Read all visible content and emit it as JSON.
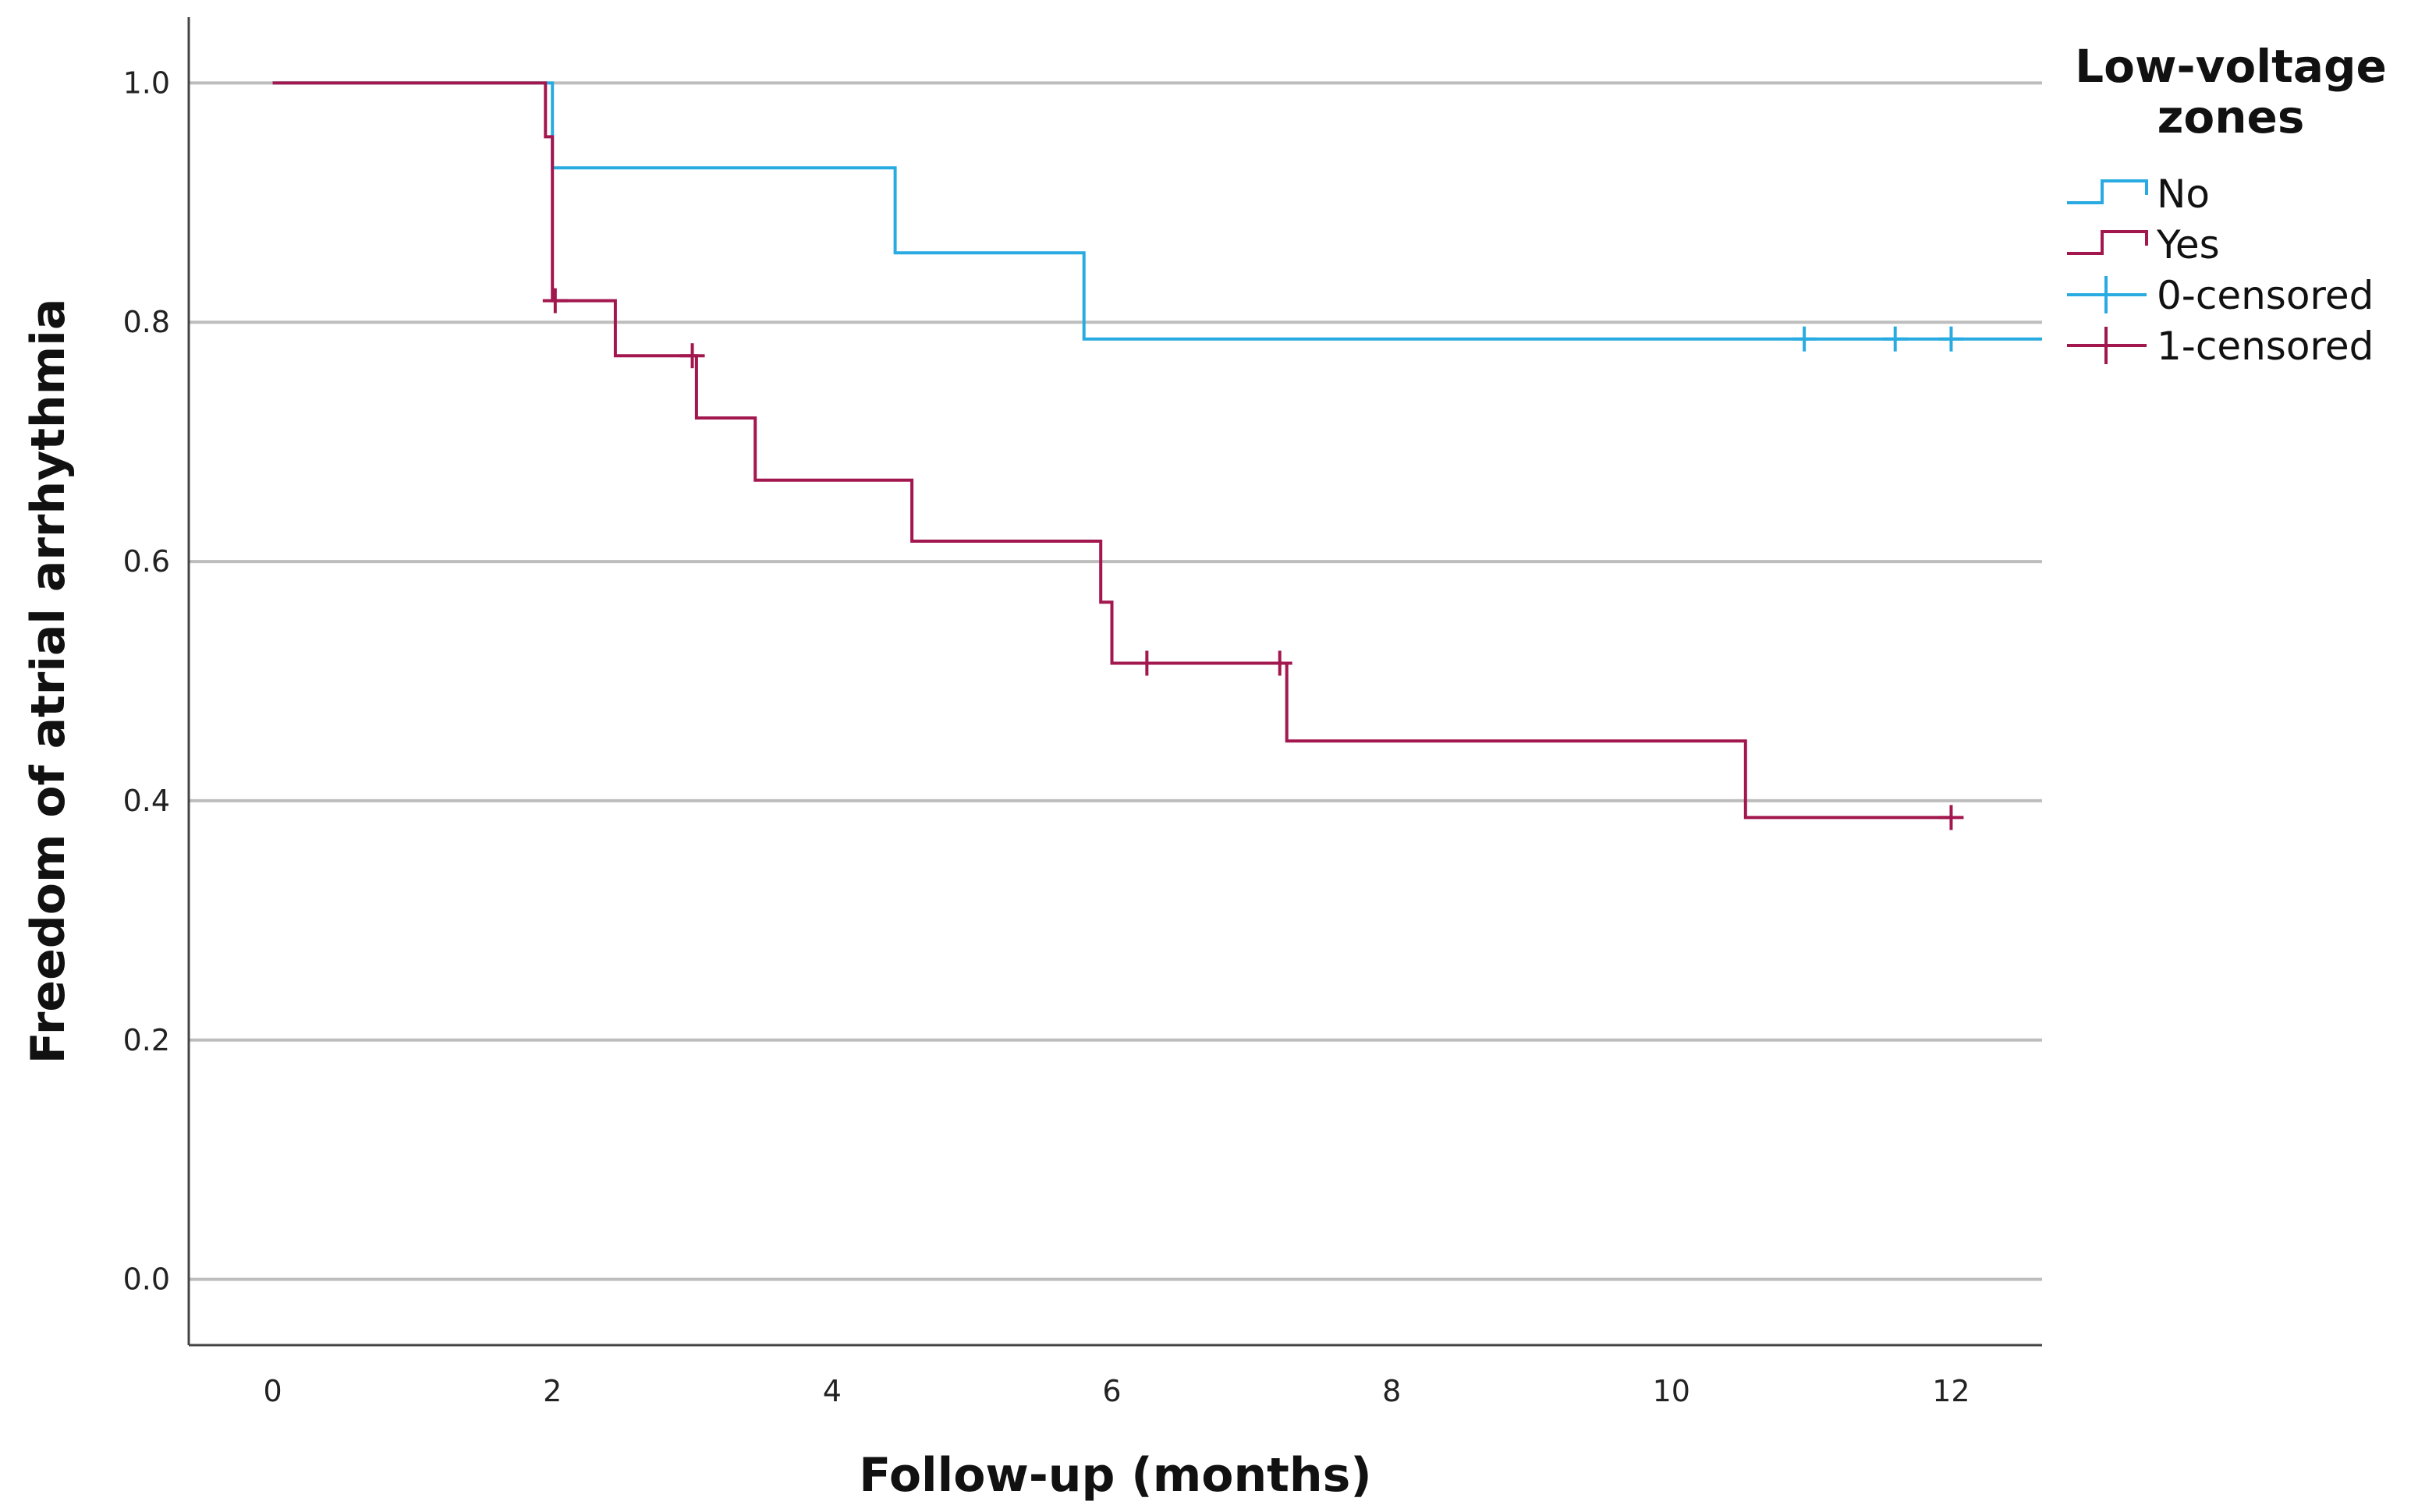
{
  "chart_data": {
    "type": "line",
    "xlabel": "Follow-up (months)",
    "ylabel": "Freedom of atrial arrhythmia",
    "xlim": [
      -0.6,
      12.65
    ],
    "ylim": [
      -0.055,
      1.055
    ],
    "x_ticks": [
      "0",
      "2",
      "4",
      "6",
      "8",
      "10",
      "12"
    ],
    "y_ticks": [
      "0.0",
      "0.2",
      "0.4",
      "0.6",
      "0.8",
      "1.0"
    ],
    "grid": "horizontal",
    "legend": {
      "title_line1": "Low-voltage",
      "title_line2": "zones",
      "placement": "right",
      "entries": [
        "No",
        "Yes",
        "0-censored",
        "1-censored"
      ]
    },
    "series": [
      {
        "name": "No",
        "color": "#29abe2",
        "steps": [
          [
            0,
            1.0
          ],
          [
            2.0,
            0.929
          ],
          [
            4.45,
            0.858
          ],
          [
            5.8,
            0.786
          ],
          [
            12.65,
            0.786
          ]
        ],
        "censored": [
          [
            10.95,
            0.786
          ],
          [
            11.6,
            0.786
          ],
          [
            12.0,
            0.786
          ]
        ]
      },
      {
        "name": "Yes",
        "color": "#a3174f",
        "steps": [
          [
            0,
            1.0
          ],
          [
            1.95,
            0.955
          ],
          [
            2.0,
            0.818
          ],
          [
            2.45,
            0.772
          ],
          [
            3.03,
            0.72
          ],
          [
            3.45,
            0.668
          ],
          [
            4.57,
            0.617
          ],
          [
            5.92,
            0.566
          ],
          [
            6.0,
            0.515
          ],
          [
            7.25,
            0.45
          ],
          [
            10.53,
            0.386
          ],
          [
            12.0,
            0.386
          ]
        ],
        "censored": [
          [
            2.02,
            0.818
          ],
          [
            3.0,
            0.772
          ],
          [
            6.25,
            0.515
          ],
          [
            7.2,
            0.515
          ],
          [
            12.0,
            0.386
          ]
        ]
      }
    ]
  }
}
